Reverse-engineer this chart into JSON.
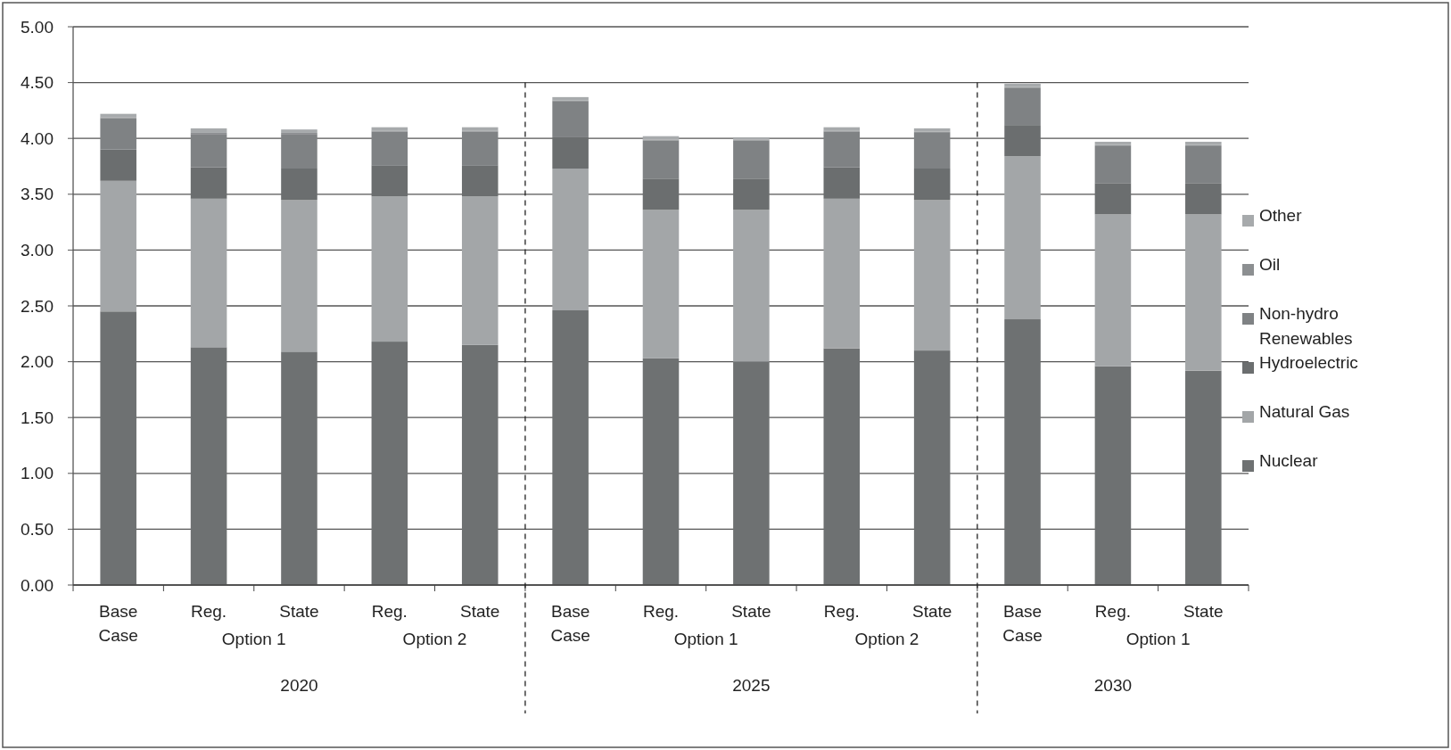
{
  "chart_data": {
    "type": "bar",
    "stacked": true,
    "categories": [
      "Base Case",
      "Reg.",
      "State",
      "Reg.",
      "State",
      "Base Case",
      "Reg.",
      "State",
      "Reg.",
      "State",
      "Base Case",
      "Reg.",
      "State"
    ],
    "series": [
      {
        "name": "Nuclear",
        "color": "#6e7172",
        "values": [
          2.45,
          2.13,
          2.09,
          2.18,
          2.15,
          2.46,
          2.03,
          2.0,
          2.12,
          2.1,
          2.38,
          1.96,
          1.92
        ]
      },
      {
        "name": "Natural Gas",
        "color": "#a3a6a8",
        "values": [
          1.17,
          1.33,
          1.36,
          1.3,
          1.33,
          1.27,
          1.33,
          1.36,
          1.34,
          1.35,
          1.46,
          1.36,
          1.4
        ]
      },
      {
        "name": "Hydroelectric",
        "color": "#6b6e6f",
        "values": [
          0.28,
          0.28,
          0.28,
          0.28,
          0.28,
          0.28,
          0.28,
          0.28,
          0.28,
          0.28,
          0.28,
          0.28,
          0.28
        ]
      },
      {
        "name": "Non-hydro Renewables",
        "color": "#7f8284",
        "values": [
          0.28,
          0.3,
          0.31,
          0.3,
          0.3,
          0.32,
          0.34,
          0.34,
          0.32,
          0.32,
          0.33,
          0.33,
          0.33
        ]
      },
      {
        "name": "Oil",
        "color": "#8c8f91",
        "values": [
          0.01,
          0.01,
          0.01,
          0.01,
          0.01,
          0.01,
          0.01,
          0.01,
          0.01,
          0.01,
          0.01,
          0.01,
          0.01
        ]
      },
      {
        "name": "Other",
        "color": "#a7aaac",
        "values": [
          0.03,
          0.04,
          0.03,
          0.03,
          0.03,
          0.03,
          0.03,
          0.02,
          0.03,
          0.03,
          0.03,
          0.03,
          0.03
        ]
      }
    ],
    "ylim": [
      0,
      5
    ],
    "yticks": [
      {
        "value": 0,
        "label": "0.00"
      },
      {
        "value": 0.5,
        "label": "0.50"
      },
      {
        "value": 1,
        "label": "1.00"
      },
      {
        "value": 1.5,
        "label": "1.50"
      },
      {
        "value": 2,
        "label": "2.00"
      },
      {
        "value": 2.5,
        "label": "2.50"
      },
      {
        "value": 3,
        "label": "3.00"
      },
      {
        "value": 3.5,
        "label": "3.50"
      },
      {
        "value": 4,
        "label": "4.00"
      },
      {
        "value": 4.5,
        "label": "4.50"
      },
      {
        "value": 5,
        "label": "5.00"
      }
    ],
    "grid": "y",
    "legend": "right",
    "annotations": [
      "Option 1",
      "Option 2",
      "Option 1",
      "Option 2",
      "Option 1",
      "2020",
      "2025",
      "2030"
    ]
  }
}
